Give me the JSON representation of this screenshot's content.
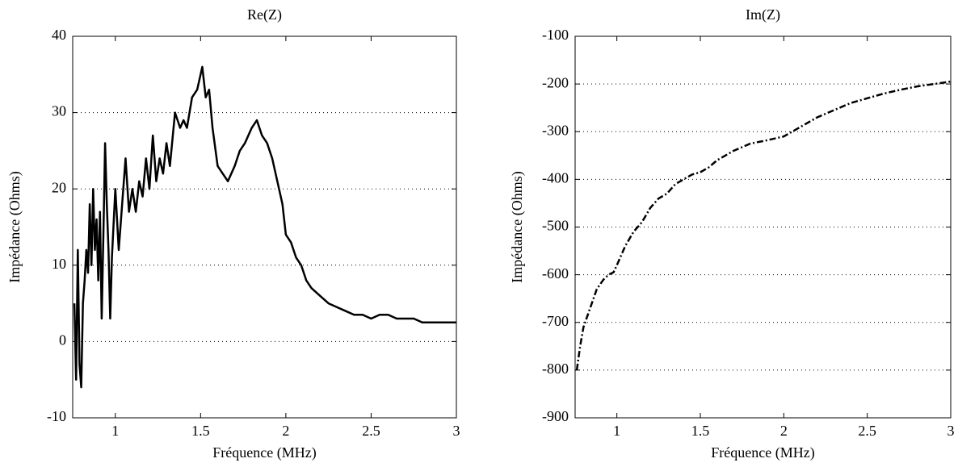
{
  "chart_data": [
    {
      "type": "line",
      "title": "Re(Z)",
      "xlabel": "Fréquence (MHz)",
      "ylabel": "Impédance (Ohms)",
      "color": "#000000",
      "linestyle": "solid",
      "grid": "y",
      "xlim": [
        0.75,
        3
      ],
      "xticks": [
        1,
        1.5,
        2,
        2.5,
        3
      ],
      "ylim": [
        -10,
        40
      ],
      "yticks": [
        -10,
        0,
        10,
        20,
        30,
        40
      ],
      "x": [
        0.76,
        0.77,
        0.78,
        0.79,
        0.8,
        0.81,
        0.82,
        0.83,
        0.84,
        0.85,
        0.86,
        0.87,
        0.88,
        0.89,
        0.9,
        0.91,
        0.92,
        0.93,
        0.94,
        0.95,
        0.96,
        0.97,
        0.98,
        1.0,
        1.02,
        1.04,
        1.06,
        1.08,
        1.1,
        1.12,
        1.14,
        1.16,
        1.18,
        1.2,
        1.22,
        1.24,
        1.26,
        1.28,
        1.3,
        1.32,
        1.35,
        1.38,
        1.4,
        1.42,
        1.45,
        1.48,
        1.51,
        1.53,
        1.55,
        1.57,
        1.6,
        1.63,
        1.66,
        1.7,
        1.73,
        1.76,
        1.8,
        1.83,
        1.86,
        1.89,
        1.92,
        1.95,
        1.98,
        2.0,
        2.03,
        2.06,
        2.09,
        2.12,
        2.15,
        2.2,
        2.25,
        2.3,
        2.35,
        2.4,
        2.45,
        2.5,
        2.55,
        2.6,
        2.65,
        2.7,
        2.75,
        2.8,
        2.85,
        2.9,
        2.95,
        3.0
      ],
      "values": [
        5,
        -5,
        12,
        -3,
        -6,
        5,
        8,
        12,
        9,
        18,
        10,
        20,
        12,
        16,
        8,
        17,
        3,
        14,
        26,
        18,
        12,
        3,
        11,
        20,
        12,
        18,
        24,
        17,
        20,
        17,
        21,
        19,
        24,
        20,
        27,
        21,
        24,
        22,
        26,
        23,
        30,
        28,
        29,
        28,
        32,
        33,
        36,
        32,
        33,
        28,
        23,
        22,
        21,
        23,
        25,
        26,
        28,
        29,
        27,
        26,
        24,
        21,
        18,
        14,
        13,
        11,
        10,
        8,
        7,
        6,
        5,
        4.5,
        4,
        3.5,
        3.5,
        3,
        3.5,
        3.5,
        3,
        3,
        3,
        2.5,
        2.5,
        2.5,
        2.5,
        2.5
      ]
    },
    {
      "type": "line",
      "title": "Im(Z)",
      "xlabel": "Fréquence (MHz)",
      "ylabel": "Impédance (Ohms)",
      "color": "#000000",
      "linestyle": "dashdot",
      "grid": "y",
      "xlim": [
        0.75,
        3
      ],
      "xticks": [
        1,
        1.5,
        2,
        2.5,
        3
      ],
      "ylim": [
        -900,
        -100
      ],
      "yticks": [
        -900,
        -800,
        -700,
        -600,
        -500,
        -400,
        -300,
        -200,
        -100
      ],
      "x": [
        0.76,
        0.78,
        0.8,
        0.82,
        0.84,
        0.86,
        0.88,
        0.9,
        0.92,
        0.95,
        0.98,
        1.0,
        1.05,
        1.1,
        1.15,
        1.2,
        1.25,
        1.3,
        1.35,
        1.4,
        1.45,
        1.5,
        1.55,
        1.6,
        1.7,
        1.8,
        1.9,
        2.0,
        2.1,
        2.2,
        2.3,
        2.4,
        2.5,
        2.6,
        2.7,
        2.8,
        2.9,
        3.0
      ],
      "values": [
        -800,
        -750,
        -710,
        -690,
        -670,
        -650,
        -630,
        -620,
        -610,
        -600,
        -595,
        -580,
        -540,
        -510,
        -490,
        -460,
        -440,
        -430,
        -410,
        -400,
        -390,
        -385,
        -375,
        -360,
        -340,
        -325,
        -318,
        -310,
        -290,
        -270,
        -255,
        -240,
        -230,
        -220,
        -212,
        -205,
        -200,
        -195
      ]
    }
  ]
}
